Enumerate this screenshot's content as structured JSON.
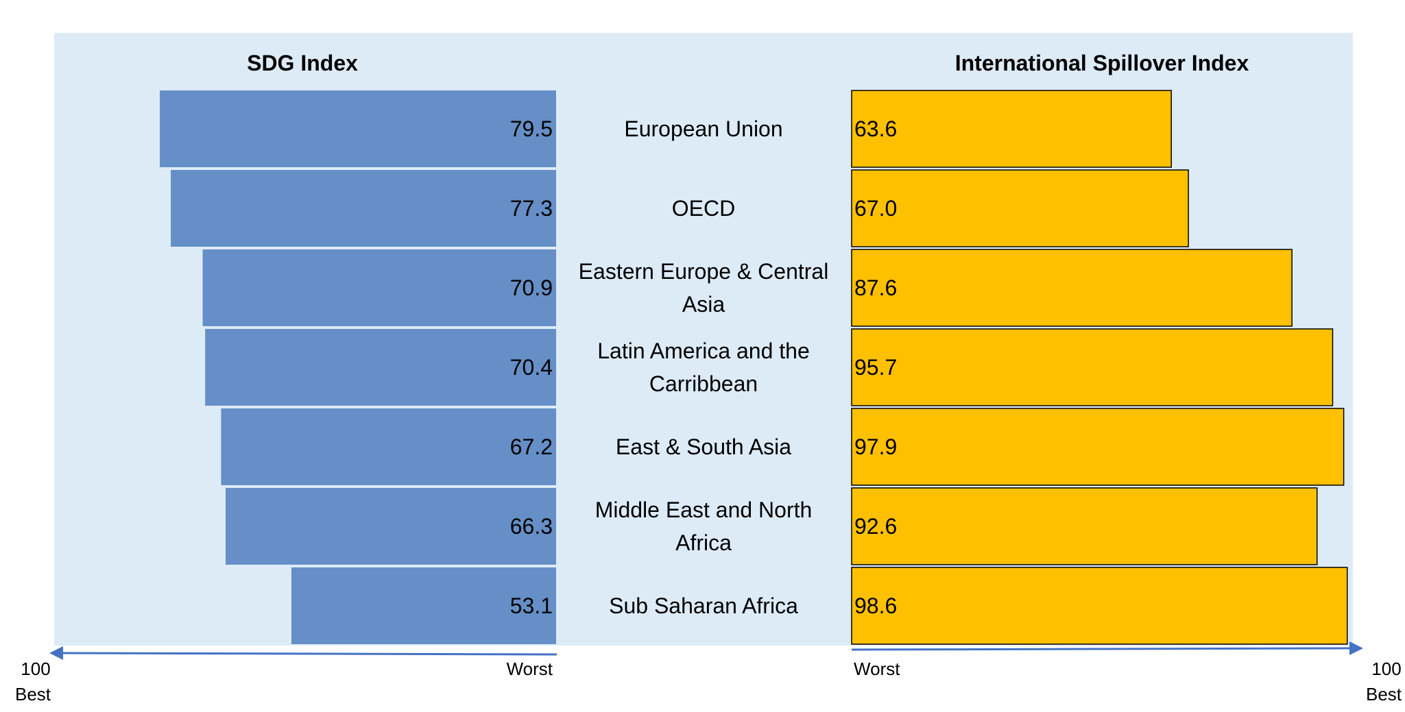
{
  "chart_data": {
    "type": "bar",
    "categories": [
      "European Union",
      "OECD",
      "Eastern Europe & Central Asia",
      "Latin America and the Carribbean",
      "East & South Asia",
      "Middle East and North Africa",
      "Sub Saharan Africa"
    ],
    "category_lines": [
      [
        "European Union"
      ],
      [
        "OECD"
      ],
      [
        "Eastern Europe & Central",
        "Asia"
      ],
      [
        "Latin America and the",
        "Carribbean"
      ],
      [
        "East & South Asia"
      ],
      [
        "Middle East and North",
        "Africa"
      ],
      [
        "Sub Saharan Africa"
      ]
    ],
    "series": [
      {
        "name": "SDG Index",
        "values": [
          79.5,
          77.3,
          70.9,
          70.4,
          67.2,
          66.3,
          53.1
        ],
        "labels": [
          "79.5",
          "77.3",
          "70.9",
          "70.4",
          "67.2",
          "66.3",
          "53.1"
        ],
        "color": "#658FC6",
        "direction": "left",
        "axis_left_label_top": "100",
        "axis_left_label_bottom": "Best",
        "axis_right_label": "Worst"
      },
      {
        "name": "International Spillover Index",
        "values": [
          63.6,
          67.0,
          87.6,
          95.7,
          97.9,
          92.6,
          98.6
        ],
        "labels": [
          "63.6",
          "67.0",
          "87.6",
          "95.7",
          "97.9",
          "92.6",
          "98.6"
        ],
        "color": "#FFC000",
        "direction": "right",
        "axis_left_label": "Worst",
        "axis_right_label_top": "100",
        "axis_right_label_bottom": "Best"
      }
    ],
    "xlim": [
      0,
      100
    ],
    "grid": false,
    "legend": "none",
    "colors": {
      "background_panel": "#DDEBF7",
      "axis_arrow": "#4472C4",
      "bar_outline_right": "#000000",
      "text": "#000000"
    }
  }
}
